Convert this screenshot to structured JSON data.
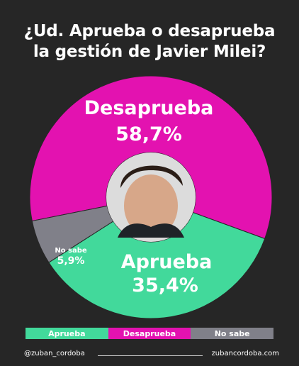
{
  "title_lines": [
    "¿Ud. Aprueba o desaprueba",
    "la gestión de Javier Milei?"
  ],
  "colors": {
    "background": "#262626",
    "aprueba": "#42d99b",
    "desaprueba": "#e312b0",
    "no_sabe": "#808089",
    "center": "#dcdcdc"
  },
  "chart_data": {
    "type": "pie",
    "donut": true,
    "title": "¿Ud. Aprueba o desaprueba la gestión de Javier Milei?",
    "slices": [
      {
        "label": "Desaprueba",
        "value": 58.7,
        "display": "58,7%"
      },
      {
        "label": "Aprueba",
        "value": 35.4,
        "display": "35,4%"
      },
      {
        "label": "No sabe",
        "value": 5.9,
        "display": "5,9%"
      }
    ],
    "legend": {
      "position": "bottom",
      "entries": [
        "Aprueba",
        "Desaprueba",
        "No sabe"
      ]
    }
  },
  "center_image": "portrait-photo",
  "footer": {
    "handle": "@zuban_cordoba",
    "site": "zubancordoba.com"
  }
}
